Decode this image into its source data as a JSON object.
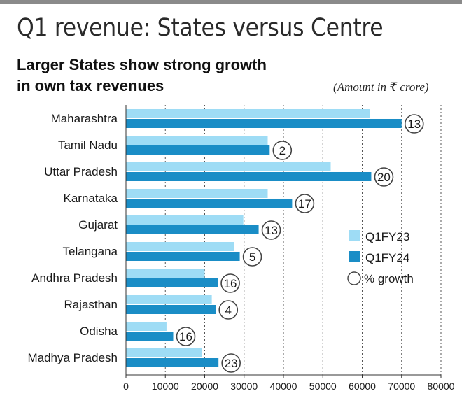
{
  "title": "Q1 revenue: States versus Centre",
  "subtitle_lines": [
    "Larger States show strong growth",
    "in own tax revenues"
  ],
  "unit_note": "(Amount in ₹ crore)",
  "colors": {
    "q1fy23": "#9edcf5",
    "q1fy24": "#1a8dc6",
    "grid": "#555555",
    "circle": "#444444"
  },
  "chart_data": {
    "type": "bar",
    "orientation": "horizontal",
    "categories": [
      "Maharashtra",
      "Tamil Nadu",
      "Uttar Pradesh",
      "Karnataka",
      "Gujarat",
      "Telangana",
      "Andhra Pradesh",
      "Rajasthan",
      "Odisha",
      "Madhya Pradesh"
    ],
    "series": [
      {
        "name": "Q1FY23",
        "values": [
          62000,
          36000,
          52000,
          36000,
          29800,
          27500,
          20000,
          21800,
          10300,
          19200
        ]
      },
      {
        "name": "Q1FY24",
        "values": [
          70000,
          36500,
          62300,
          42200,
          33700,
          28900,
          23300,
          22800,
          12000,
          23500
        ]
      }
    ],
    "annotations": {
      "name": "% growth",
      "values": [
        "13",
        "2",
        "20",
        "17",
        "13",
        "5",
        "16",
        "4",
        "16",
        "23"
      ]
    },
    "xlim": [
      0,
      80000
    ],
    "xticks": [
      0,
      10000,
      20000,
      30000,
      40000,
      50000,
      60000,
      70000,
      80000
    ],
    "xtick_labels": [
      "0",
      "10000",
      "20000",
      "30000",
      "40000",
      "50000",
      "60000",
      "70000",
      "80000"
    ],
    "grid": "vertical dotted",
    "legend_position": "right"
  }
}
